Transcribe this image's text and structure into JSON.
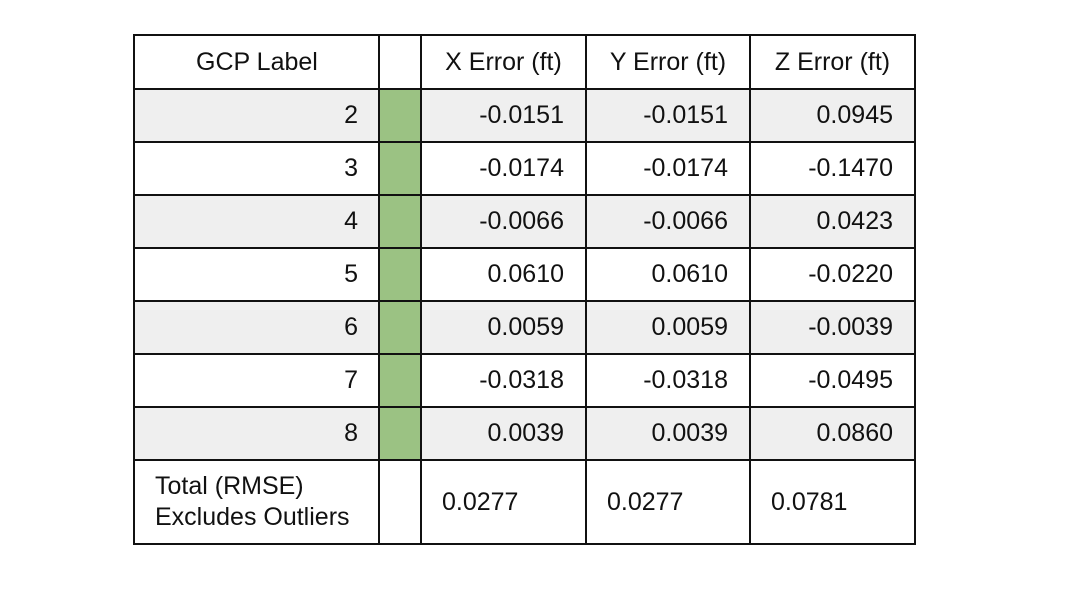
{
  "table": {
    "headers": [
      "GCP Label",
      "",
      "X Error (ft)",
      "Y Error (ft)",
      "Z Error (ft)"
    ],
    "flag_color": "#9bc283",
    "rows": [
      {
        "label": "2",
        "x": "-0.0151",
        "y": "-0.0151",
        "z": "0.0945"
      },
      {
        "label": "3",
        "x": "-0.0174",
        "y": "-0.0174",
        "z": "-0.1470"
      },
      {
        "label": "4",
        "x": "-0.0066",
        "y": "-0.0066",
        "z": "0.0423"
      },
      {
        "label": "5",
        "x": "0.0610",
        "y": "0.0610",
        "z": "-0.0220"
      },
      {
        "label": "6",
        "x": "0.0059",
        "y": "0.0059",
        "z": "-0.0039"
      },
      {
        "label": "7",
        "x": "-0.0318",
        "y": "-0.0318",
        "z": "-0.0495"
      },
      {
        "label": "8",
        "x": "0.0039",
        "y": "0.0039",
        "z": "0.0860"
      }
    ],
    "total": {
      "label_line1": "Total (RMSE)",
      "label_line2": "Excludes Outliers",
      "x": "0.0277",
      "y": "0.0277",
      "z": "0.0781"
    }
  }
}
